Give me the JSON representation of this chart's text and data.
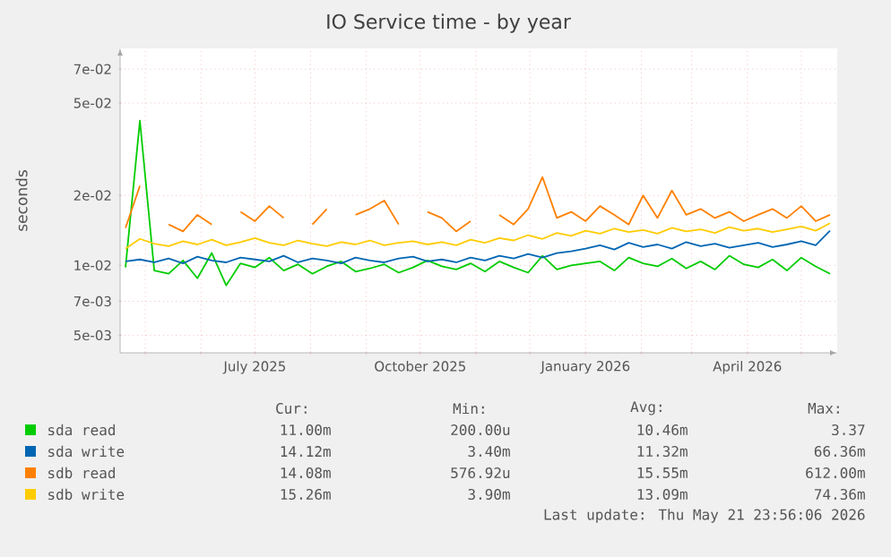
{
  "chart_data": {
    "type": "line",
    "title": "IO Service time - by year",
    "ylabel": "seconds",
    "log": "y",
    "grid": true,
    "legend": "bottom",
    "xlim": [
      "2025-04-17",
      "2026-05-21"
    ],
    "xticks": [
      {
        "value": "2025-05-01",
        "label": null
      },
      {
        "value": "2025-06-01",
        "label": null
      },
      {
        "value": "2025-07-01",
        "label": "July 2025"
      },
      {
        "value": "2025-08-01",
        "label": null
      },
      {
        "value": "2025-09-01",
        "label": null
      },
      {
        "value": "2025-10-01",
        "label": "October 2025"
      },
      {
        "value": "2025-11-01",
        "label": null
      },
      {
        "value": "2025-12-01",
        "label": null
      },
      {
        "value": "2026-01-01",
        "label": "January 2026"
      },
      {
        "value": "2026-02-01",
        "label": null
      },
      {
        "value": "2026-03-01",
        "label": null
      },
      {
        "value": "2026-04-01",
        "label": "April 2026"
      },
      {
        "value": "2026-05-01",
        "label": null
      }
    ],
    "ylim": [
      0.0042,
      0.086
    ],
    "yticks": [
      {
        "value": 0.005,
        "label": "5e-03"
      },
      {
        "value": 0.007,
        "label": "7e-03"
      },
      {
        "value": 0.01,
        "label": "1e-02"
      },
      {
        "value": 0.02,
        "label": "2e-02"
      },
      {
        "value": 0.05,
        "label": "5e-02"
      },
      {
        "value": 0.07,
        "label": "7e-02"
      }
    ],
    "x": [
      "2025-04-20",
      "2025-04-28",
      "2025-05-06",
      "2025-05-14",
      "2025-05-22",
      "2025-05-30",
      "2025-06-07",
      "2025-06-15",
      "2025-06-23",
      "2025-07-01",
      "2025-07-09",
      "2025-07-17",
      "2025-07-25",
      "2025-08-02",
      "2025-08-10",
      "2025-08-18",
      "2025-08-26",
      "2025-09-03",
      "2025-09-11",
      "2025-09-19",
      "2025-09-27",
      "2025-10-05",
      "2025-10-13",
      "2025-10-21",
      "2025-10-29",
      "2025-11-06",
      "2025-11-14",
      "2025-11-22",
      "2025-11-30",
      "2025-12-08",
      "2025-12-16",
      "2025-12-24",
      "2026-01-01",
      "2026-01-09",
      "2026-01-17",
      "2026-01-25",
      "2026-02-02",
      "2026-02-10",
      "2026-02-18",
      "2026-02-26",
      "2026-03-06",
      "2026-03-14",
      "2026-03-22",
      "2026-03-30",
      "2026-04-07",
      "2026-04-15",
      "2026-04-23",
      "2026-05-01",
      "2026-05-09",
      "2026-05-17"
    ],
    "series": [
      {
        "name": "sda read",
        "color": "#00cc00",
        "values": [
          0.0098,
          0.042,
          0.0095,
          0.0092,
          0.0105,
          0.0088,
          0.0113,
          0.0082,
          0.0102,
          0.0098,
          0.0108,
          0.0095,
          0.0101,
          0.0092,
          0.0099,
          0.0104,
          0.0094,
          0.0097,
          0.0101,
          0.0093,
          0.0098,
          0.0105,
          0.0099,
          0.0096,
          0.0102,
          0.0094,
          0.0104,
          0.0098,
          0.0093,
          0.011,
          0.0096,
          0.01,
          0.0102,
          0.0104,
          0.0095,
          0.0108,
          0.0102,
          0.0099,
          0.0107,
          0.0097,
          0.0104,
          0.0096,
          0.011,
          0.0101,
          0.0098,
          0.0106,
          0.0095,
          0.0108,
          0.0099,
          0.0092
        ]
      },
      {
        "name": "sda write",
        "color": "#0066b3",
        "values": [
          0.0104,
          0.0106,
          0.0103,
          0.0107,
          0.0102,
          0.0109,
          0.0105,
          0.0103,
          0.0108,
          0.0106,
          0.0104,
          0.011,
          0.0103,
          0.0107,
          0.0105,
          0.0102,
          0.0108,
          0.0105,
          0.0103,
          0.0107,
          0.0109,
          0.0104,
          0.0106,
          0.0103,
          0.0108,
          0.0105,
          0.011,
          0.0107,
          0.0112,
          0.0108,
          0.0113,
          0.0115,
          0.0118,
          0.0122,
          0.0117,
          0.0125,
          0.012,
          0.0123,
          0.0118,
          0.0126,
          0.0121,
          0.0124,
          0.0119,
          0.0122,
          0.0125,
          0.012,
          0.0123,
          0.0127,
          0.0122,
          0.0141
        ]
      },
      {
        "name": "sdb read",
        "color": "#ff8000",
        "values": [
          0.0145,
          0.022,
          null,
          0.015,
          0.014,
          0.0165,
          0.015,
          null,
          0.017,
          0.0155,
          0.018,
          0.016,
          null,
          0.015,
          0.0175,
          null,
          0.0165,
          0.0175,
          0.019,
          0.015,
          null,
          0.017,
          0.016,
          0.014,
          0.0155,
          null,
          0.0165,
          0.015,
          0.0175,
          0.024,
          0.016,
          0.017,
          0.0155,
          0.018,
          0.0165,
          0.015,
          0.02,
          0.016,
          0.021,
          0.0165,
          0.0175,
          0.016,
          0.017,
          0.0155,
          0.0165,
          0.0175,
          0.016,
          0.018,
          0.0155,
          0.0165
        ]
      },
      {
        "name": "sdb write",
        "color": "#ffcc00",
        "values": [
          0.0118,
          0.013,
          0.0124,
          0.0121,
          0.0127,
          0.0123,
          0.0129,
          0.0122,
          0.0126,
          0.0131,
          0.0125,
          0.0122,
          0.0128,
          0.0124,
          0.0121,
          0.0126,
          0.0123,
          0.0128,
          0.0122,
          0.0125,
          0.0127,
          0.0123,
          0.0126,
          0.0122,
          0.0129,
          0.0125,
          0.0131,
          0.0128,
          0.0135,
          0.013,
          0.0138,
          0.0134,
          0.0141,
          0.0137,
          0.0144,
          0.0139,
          0.0142,
          0.0137,
          0.0145,
          0.014,
          0.0143,
          0.0138,
          0.0146,
          0.0141,
          0.0144,
          0.0139,
          0.0143,
          0.0147,
          0.0141,
          0.0152
        ]
      }
    ],
    "annotations": [
      "Cur:",
      "Min:",
      "Avg:",
      "Max:",
      "11.00m",
      "200.00u",
      "10.46m",
      "3.37",
      "14.12m",
      "3.40m",
      "11.32m",
      "66.36m",
      "14.08m",
      "576.92u",
      "15.55m",
      "612.00m",
      "15.26m",
      "3.90m",
      "13.09m",
      "74.36m",
      "Last update: Thu May 21 23:56:06 2026"
    ]
  }
}
